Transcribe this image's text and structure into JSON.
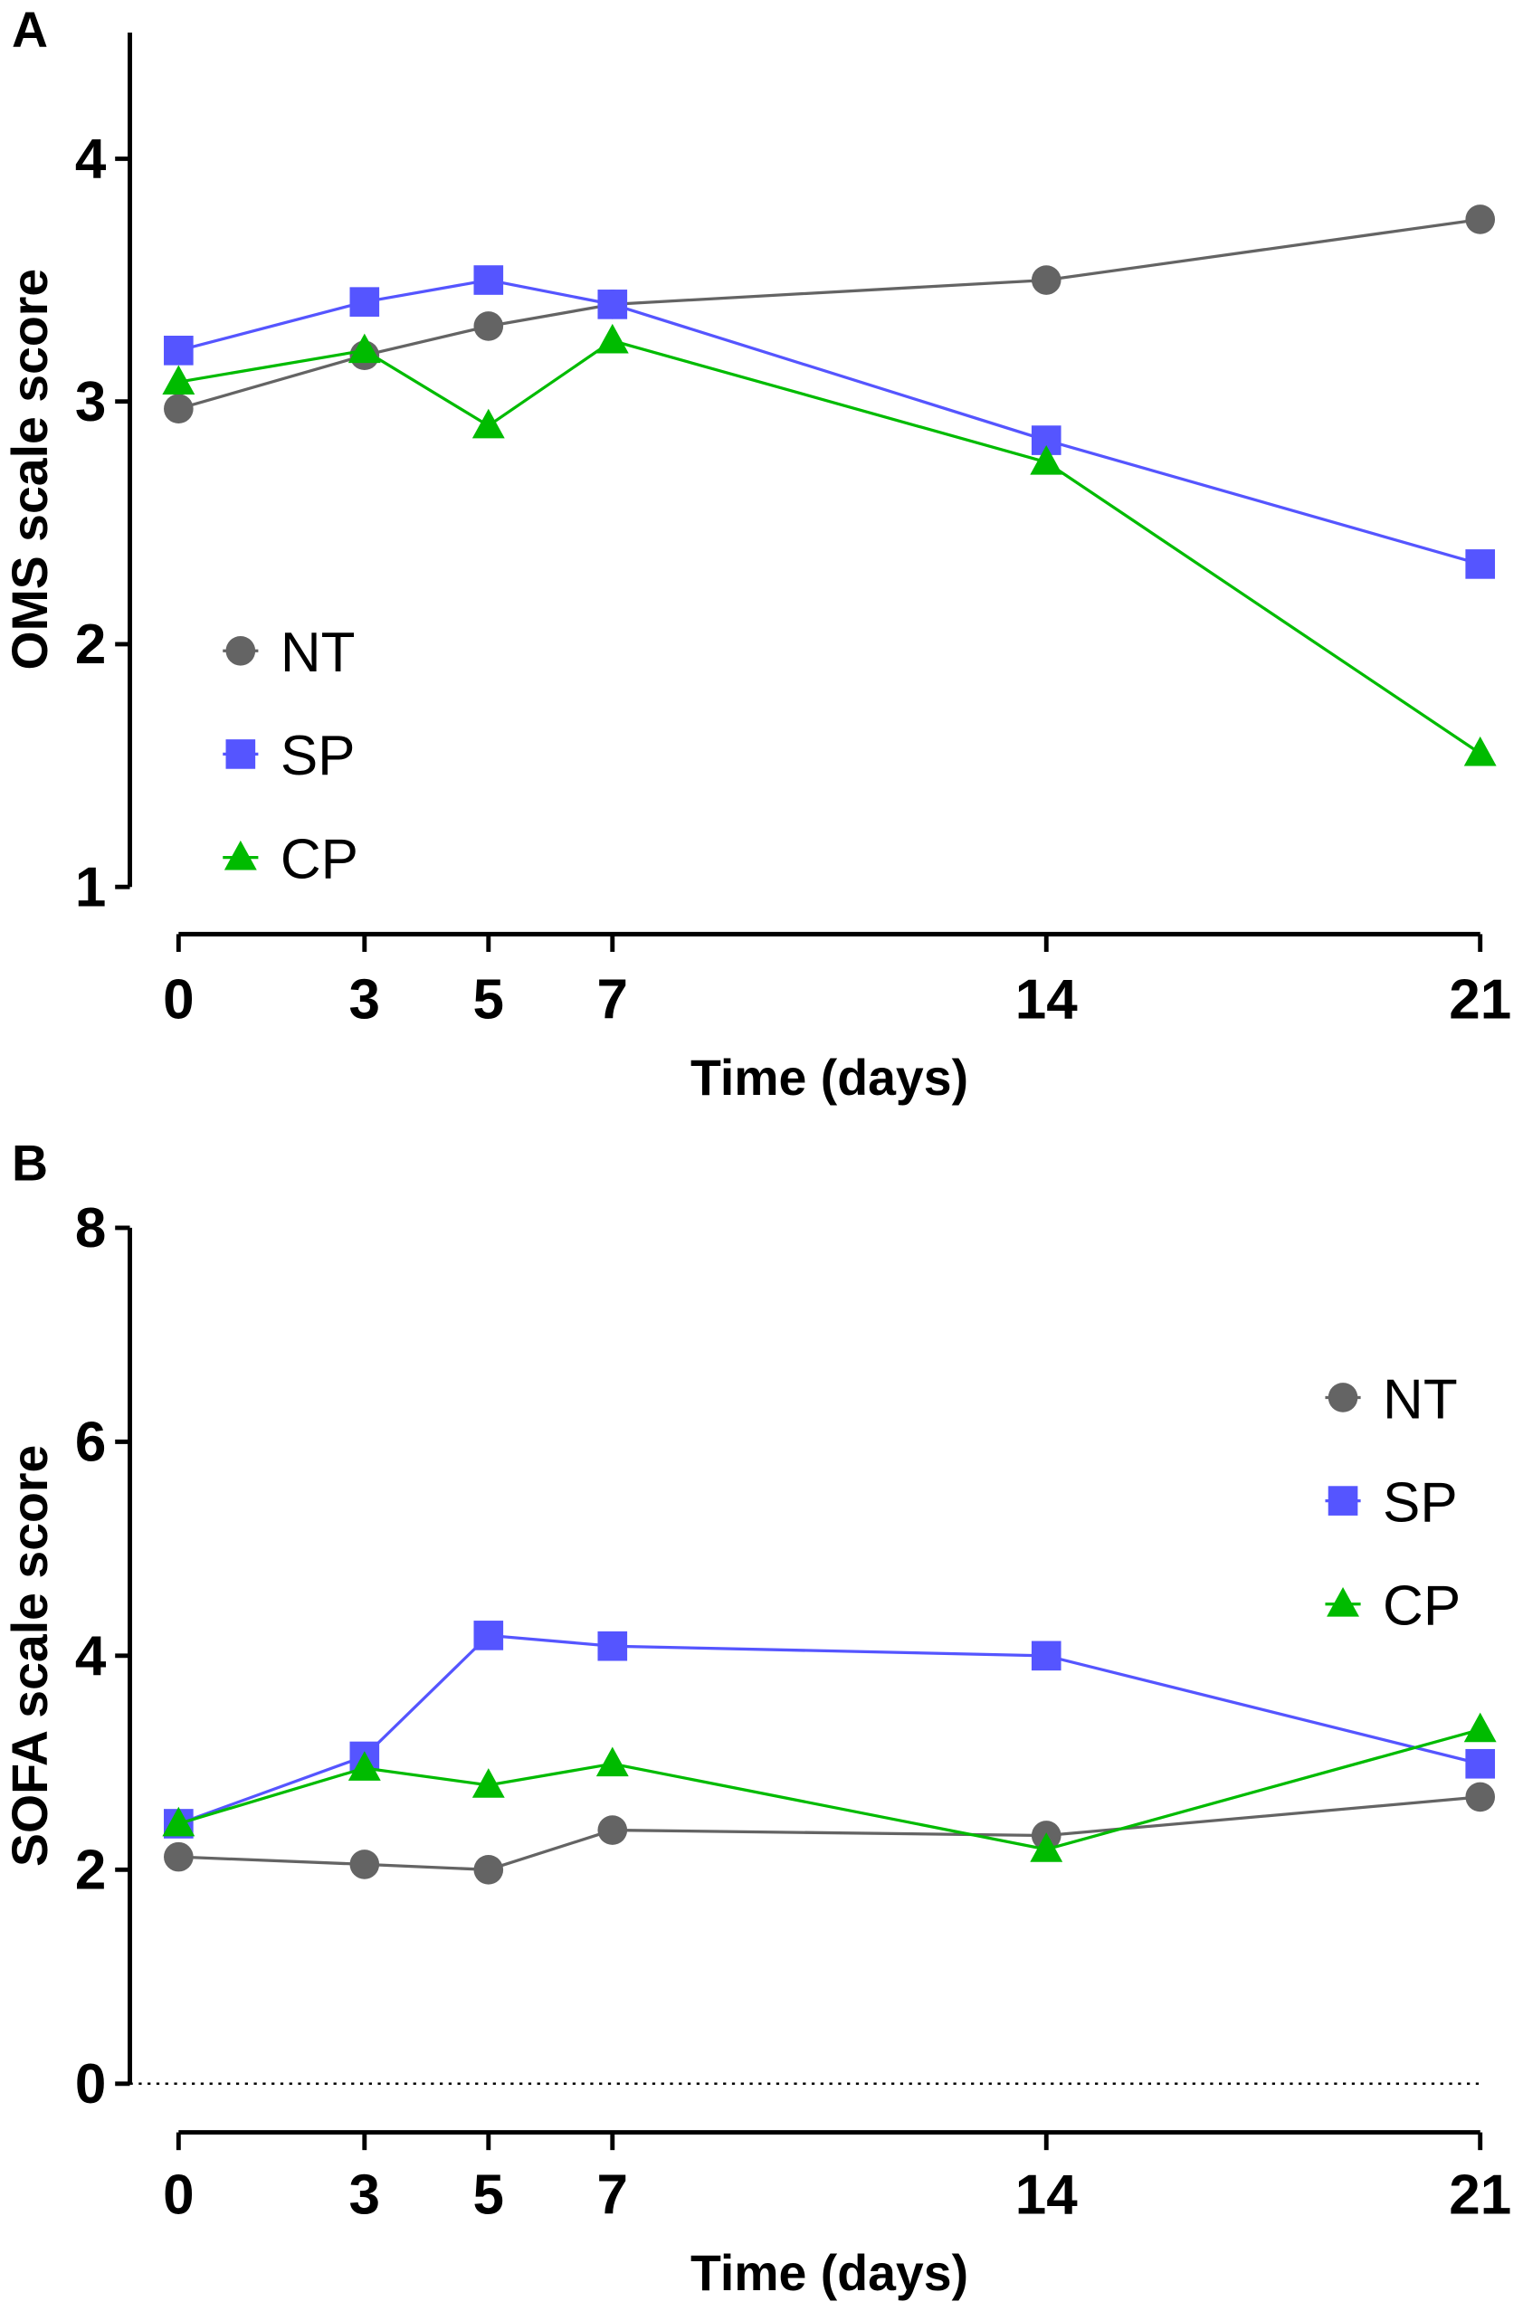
{
  "chart_data": [
    {
      "type": "line",
      "panel_label": "A",
      "xlabel": "Time (days)",
      "ylabel": "OMS scale score",
      "x": [
        0,
        3,
        5,
        7,
        14,
        21
      ],
      "xticks": [
        "0",
        "3",
        "5",
        "7",
        "14",
        "21"
      ],
      "yticks": [
        "1",
        "2",
        "3",
        "4"
      ],
      "ylim": [
        1,
        4.5
      ],
      "legend_position": "bottom-left",
      "series": [
        {
          "name": "NT",
          "marker": "circle",
          "color": "#646464",
          "values": [
            2.97,
            3.19,
            3.31,
            3.4,
            3.5,
            3.75
          ]
        },
        {
          "name": "SP",
          "marker": "square",
          "color": "#5555FF",
          "values": [
            3.21,
            3.41,
            3.5,
            3.4,
            2.84,
            2.33
          ]
        },
        {
          "name": "CP",
          "marker": "triangle",
          "color": "#00BB00",
          "values": [
            3.08,
            3.21,
            2.9,
            3.25,
            2.75,
            1.55
          ]
        }
      ]
    },
    {
      "type": "line",
      "panel_label": "B",
      "xlabel": "Time (days)",
      "ylabel": "SOFA scale score",
      "x": [
        0,
        3,
        5,
        7,
        14,
        21
      ],
      "xticks": [
        "0",
        "3",
        "5",
        "7",
        "14",
        "21"
      ],
      "yticks": [
        "0",
        "2",
        "4",
        "6",
        "8"
      ],
      "ylim": [
        0,
        8
      ],
      "reference_line": {
        "y": 0,
        "style": "dotted"
      },
      "legend_position": "top-right",
      "series": [
        {
          "name": "NT",
          "marker": "circle",
          "color": "#646464",
          "values": [
            2.12,
            2.05,
            2.0,
            2.37,
            2.32,
            2.68
          ]
        },
        {
          "name": "SP",
          "marker": "square",
          "color": "#5555FF",
          "values": [
            2.43,
            3.06,
            4.19,
            4.09,
            4.0,
            2.99
          ]
        },
        {
          "name": "CP",
          "marker": "triangle",
          "color": "#00BB00",
          "values": [
            2.43,
            2.95,
            2.79,
            2.99,
            2.19,
            3.31
          ]
        }
      ]
    }
  ]
}
